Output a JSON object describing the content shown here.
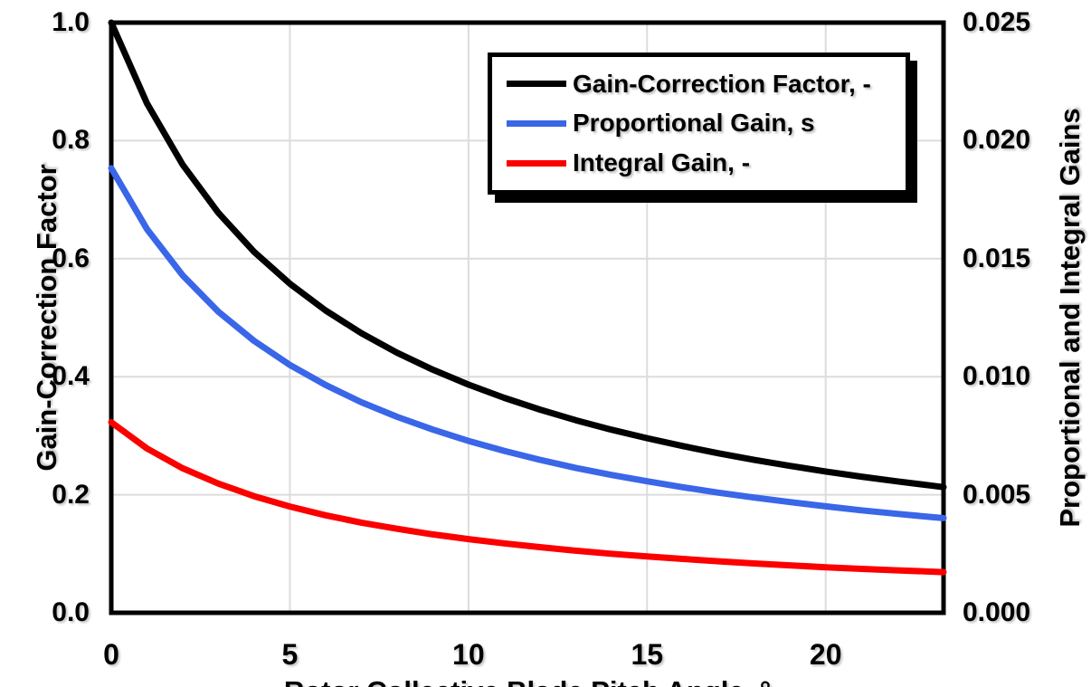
{
  "chart_data": {
    "type": "line",
    "title": "",
    "xlabel": "Rotor Collective Blade Pitch Angle, °",
    "ylabel_left": "Gain-Correction Factor",
    "ylabel_right": "Proportional and Integral Gains",
    "xlim": [
      0,
      23.3
    ],
    "ylim_left": [
      0,
      1.0
    ],
    "ylim_right": [
      0,
      0.025
    ],
    "x_ticks": [
      0,
      5,
      10,
      15,
      20
    ],
    "x_tick_labels": [
      "0",
      "5",
      "10",
      "15",
      "20"
    ],
    "y_tick_labels_left": [
      "1.0",
      "0.8",
      "0.6",
      "0.4",
      "0.2",
      "0.0"
    ],
    "y_tick_labels_right": [
      "0.025",
      "0.020",
      "0.015",
      "0.010",
      "0.005",
      "0.000"
    ],
    "grid": true,
    "grid_color": "#dcdcdc",
    "frame_color": "#000000",
    "legend_position": "top-right",
    "x": [
      0,
      1,
      2,
      3,
      4,
      5,
      6,
      7,
      8,
      9,
      10,
      11,
      12,
      13,
      14,
      15,
      16,
      17,
      18,
      19,
      20,
      21,
      22,
      23,
      23.3
    ],
    "series": [
      {
        "name": "Gain-Correction Factor, -",
        "axis": "left",
        "color": "#000000",
        "values": [
          1.0,
          0.8631,
          0.7591,
          0.6775,
          0.6117,
          0.5576,
          0.5123,
          0.4738,
          0.4406,
          0.4119,
          0.3866,
          0.3643,
          0.3443,
          0.3264,
          0.3103,
          0.2958,
          0.2825,
          0.2703,
          0.2591,
          0.2489,
          0.2394,
          0.2307,
          0.2227,
          0.2152,
          0.2129
        ]
      },
      {
        "name": "Proportional Gain, s",
        "axis": "right",
        "color": "#3a66e8",
        "values": [
          0.01883,
          0.01625,
          0.01429,
          0.01275,
          0.01152,
          0.0105,
          0.00965,
          0.00892,
          0.0083,
          0.00776,
          0.00728,
          0.00686,
          0.00648,
          0.00614,
          0.00584,
          0.00557,
          0.00532,
          0.00509,
          0.00488,
          0.00469,
          0.00451,
          0.00434,
          0.00419,
          0.00405,
          0.00401
        ]
      },
      {
        "name": "Integral Gain, -",
        "axis": "right",
        "color": "#fc0000",
        "values": [
          0.00807,
          0.00696,
          0.00612,
          0.00547,
          0.00494,
          0.0045,
          0.00413,
          0.00382,
          0.00356,
          0.00332,
          0.00312,
          0.00294,
          0.00278,
          0.00263,
          0.0025,
          0.00239,
          0.00228,
          0.00218,
          0.00209,
          0.00201,
          0.00193,
          0.00186,
          0.0018,
          0.00174,
          0.00172
        ]
      }
    ]
  }
}
